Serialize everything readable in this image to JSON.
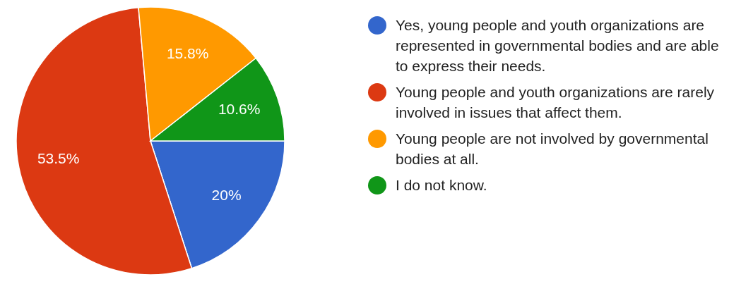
{
  "chart_data": {
    "type": "pie",
    "categories": [
      "Yes, young people and youth organizations are represented in governmental bodies and are able to express their needs.",
      "Young people and youth organizations are rarely involved in issues that affect them.",
      "Young people are not involved by governmental bodies at all.",
      "I do not know."
    ],
    "values": [
      20,
      53.5,
      15.8,
      10.6
    ],
    "colors": [
      "#3366cc",
      "#dc3912",
      "#ff9900",
      "#109618"
    ],
    "value_labels": [
      "20%",
      "53.5%",
      "15.8%",
      "10.6%"
    ],
    "legend": "right"
  }
}
